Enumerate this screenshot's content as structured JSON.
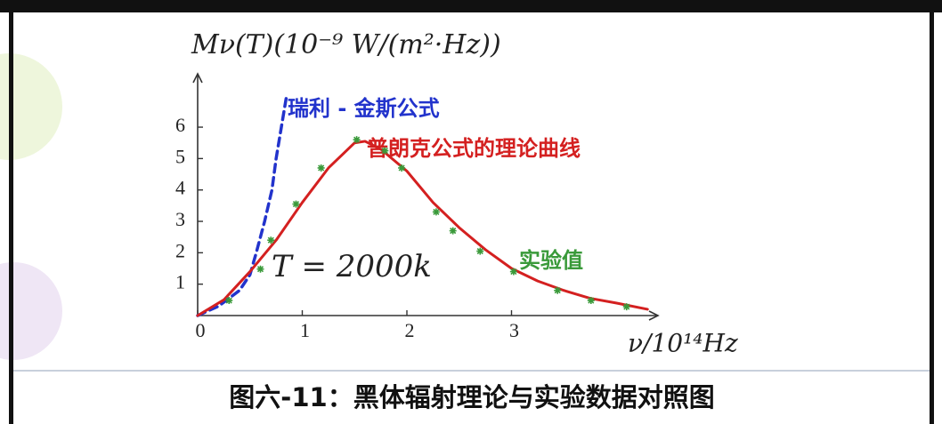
{
  "chart_data": {
    "type": "line",
    "y_label": "Mν(T)(10⁻⁹ W/(m²·Hz))",
    "x_label": "ν/10¹⁴Hz",
    "annotation": "T = 2000k",
    "xlim": [
      0,
      4.4
    ],
    "ylim": [
      0,
      7.7
    ],
    "xticks": [
      0,
      1,
      2,
      3
    ],
    "yticks": [
      1,
      2,
      3,
      4,
      5,
      6
    ],
    "series": [
      {
        "name": "瑞利 - 金斯公式",
        "color": "#2233cc",
        "style": "dashed",
        "x": [
          0,
          0.2,
          0.4,
          0.5,
          0.56,
          0.64,
          0.71,
          0.75,
          0.8,
          0.85
        ],
        "values": [
          0,
          0.3,
          0.8,
          1.3,
          2,
          3,
          4,
          5,
          6,
          7
        ]
      },
      {
        "name": "普朗克公式的理论曲线",
        "color": "#d42020",
        "style": "solid",
        "x": [
          0,
          0.25,
          0.5,
          0.75,
          1.0,
          1.25,
          1.5,
          1.6,
          1.75,
          2.0,
          2.25,
          2.5,
          2.75,
          3.0,
          3.25,
          3.5,
          3.75,
          4.0,
          4.3
        ],
        "values": [
          0,
          0.5,
          1.4,
          2.4,
          3.6,
          4.7,
          5.5,
          5.55,
          5.3,
          4.6,
          3.6,
          2.8,
          2.1,
          1.5,
          1.1,
          0.8,
          0.55,
          0.4,
          0.2
        ]
      },
      {
        "name": "实验值",
        "color": "#3a9a3a",
        "style": "markers",
        "x": [
          0.3,
          0.6,
          0.7,
          0.94,
          1.18,
          1.52,
          1.79,
          1.95,
          2.28,
          2.44,
          2.7,
          3.02,
          3.44,
          3.76,
          4.1
        ],
        "values": [
          0.48,
          1.48,
          2.4,
          3.55,
          4.7,
          5.6,
          5.25,
          4.7,
          3.3,
          2.7,
          2.05,
          1.4,
          0.8,
          0.48,
          0.28
        ]
      }
    ]
  },
  "caption": "图六-11：黑体辐射理论与实验数据对照图"
}
